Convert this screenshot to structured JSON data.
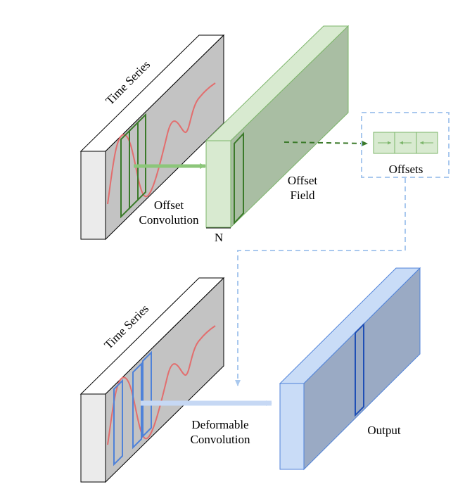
{
  "diagram": {
    "top": {
      "input_label": "Time Series",
      "operation_label_line1": "Offset",
      "operation_label_line2": "Convolution",
      "field_label_line1": "Offset",
      "field_label_line2": "Field",
      "channel_dim_label": "N",
      "offsets_label": "Offsets"
    },
    "bottom": {
      "input_label": "Time Series",
      "operation_label_line1": "Deformable",
      "operation_label_line2": "Convolution",
      "output_label": "Output"
    }
  },
  "colors": {
    "block_front": "#ebebeb",
    "block_side": "#c3c3c3",
    "block_edge": "#000000",
    "signal": "#e26e6e",
    "green_fill_light": "#d8ead0",
    "green_fill_dark": "#a9bea3",
    "green_edge": "#7cb56a",
    "green_kernel": "#3b7a2a",
    "green_arrow": "#8cc67a",
    "blue_fill_light": "#c9dcf7",
    "blue_fill_dark": "#9aaac4",
    "blue_edge": "#4f82d9",
    "blue_kernel": "#1f4fb5",
    "blue_arrow": "#c6d8f4",
    "dashed_box": "#a9c8ee"
  }
}
